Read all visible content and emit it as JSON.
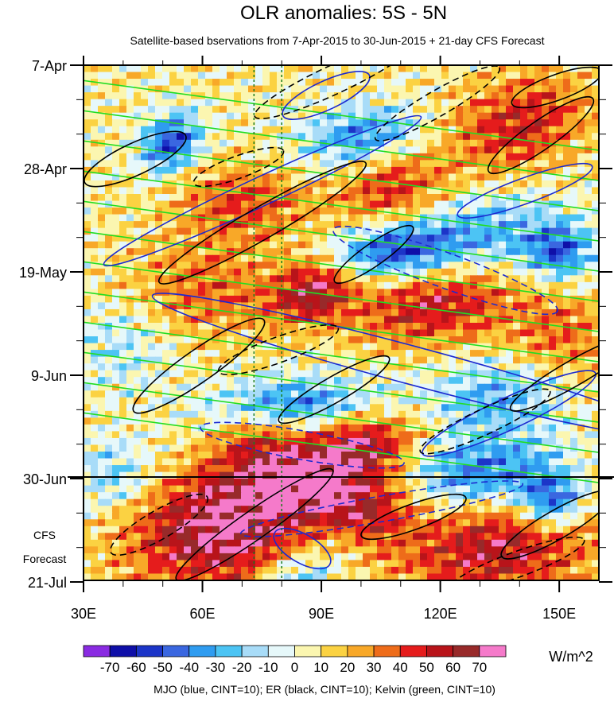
{
  "chart_data": {
    "type": "heatmap",
    "title": "OLR anomalies: 5S - 5N",
    "subtitle": "Satellite-based bservations from 7-Apr-2015 to 30-Jun-2015 + 21-day CFS Forecast",
    "x_axis": {
      "range": [
        30,
        160
      ],
      "ticks": [
        {
          "value": 30,
          "label": "30E"
        },
        {
          "value": 60,
          "label": "60E"
        },
        {
          "value": 90,
          "label": "90E"
        },
        {
          "value": 120,
          "label": "120E"
        },
        {
          "value": 150,
          "label": "150E"
        }
      ]
    },
    "y_axis": {
      "ticks": [
        "7-Apr",
        "28-Apr",
        "19-May",
        "9-Jun",
        "30-Jun",
        "21-Jul"
      ],
      "forecast_label": [
        "CFS",
        "Forecast"
      ]
    },
    "observation_end": "30-Jun",
    "colorbar": {
      "values": [
        -70,
        -60,
        -50,
        -40,
        -30,
        -20,
        -10,
        0,
        10,
        20,
        30,
        40,
        50,
        60,
        70
      ],
      "labels": [
        "-70",
        "-60",
        "-50",
        "-40",
        "-30",
        "-20",
        "-10",
        "0",
        "10",
        "20",
        "30",
        "40",
        "50",
        "60",
        "70"
      ],
      "colors": [
        "#8a2be2",
        "#0f0fa8",
        "#1c35c8",
        "#3a67e0",
        "#2f9cf0",
        "#4cc4f4",
        "#a8dcf8",
        "#e6f8fa",
        "#fbf6b0",
        "#fbd242",
        "#f8a828",
        "#ee6c1a",
        "#e51c1c",
        "#b8141a",
        "#982a2a",
        "#f57aca"
      ],
      "units": "W/m^2"
    },
    "reference_lines_E": [
      73,
      80
    ],
    "footer": "MJO (blue, CINT=10); ER (black, CINT=10); Kelvin (green, CINT=10)",
    "contour_colors": {
      "mjo": "#1c2ad0",
      "er": "#000000",
      "kelvin": "#22dd22"
    }
  }
}
